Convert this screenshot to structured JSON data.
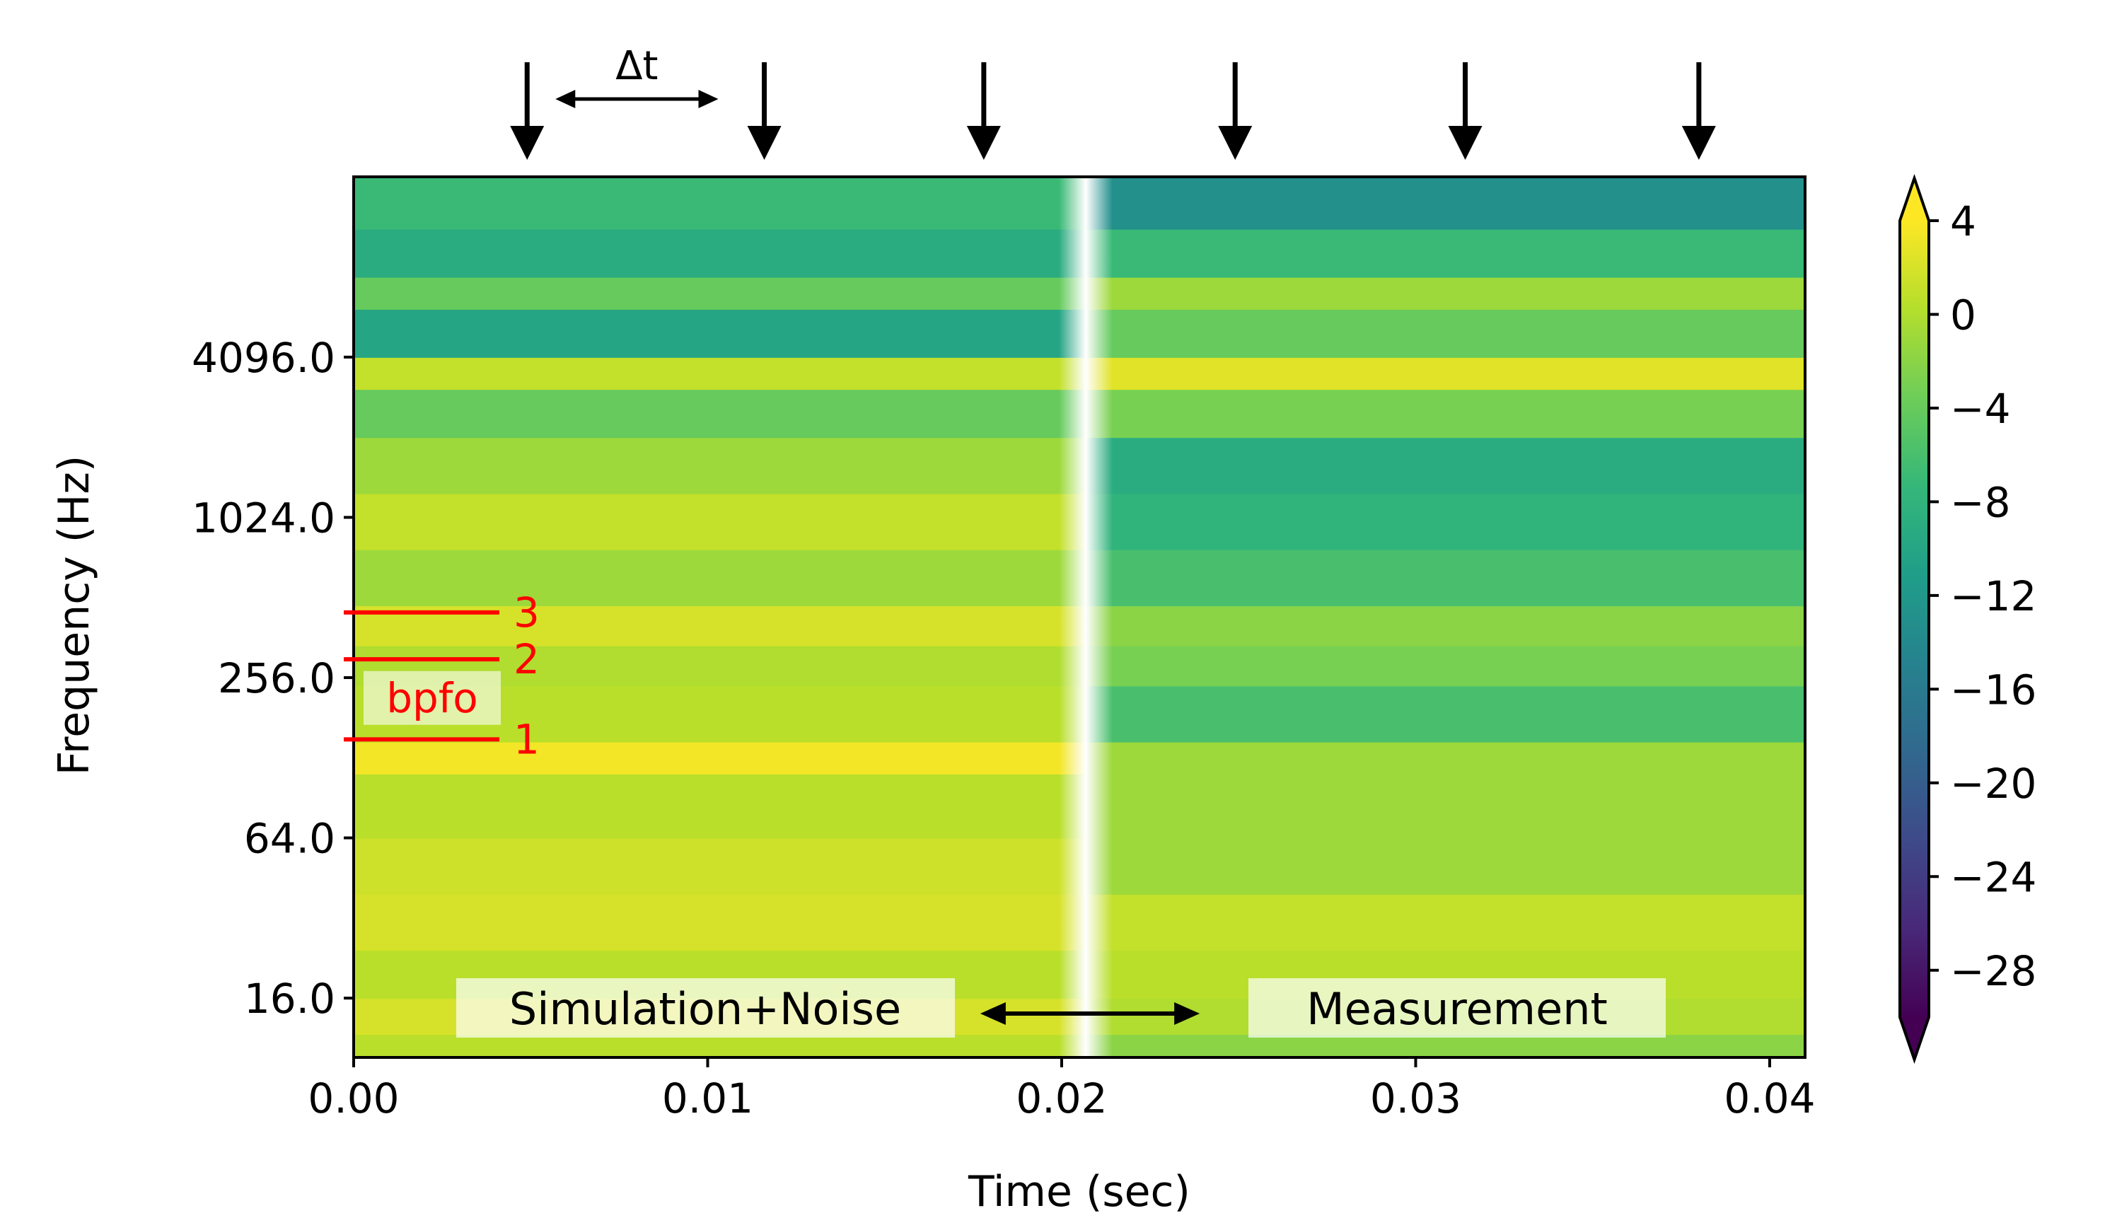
{
  "chart_data": {
    "type": "heatmap",
    "subtype": "wavelet-scalogram",
    "xlabel": "Time (sec)",
    "ylabel": "Frequency (Hz)",
    "xlim": [
      0.0,
      0.041
    ],
    "x_ticks": [
      0.0,
      0.01,
      0.02,
      0.03,
      0.04
    ],
    "x_tick_labels": [
      "0.00",
      "0.01",
      "0.02",
      "0.03",
      "0.04"
    ],
    "ylim_log2": [
      3.26,
      14.25
    ],
    "y_ticks": [
      16,
      64,
      256,
      1024,
      4096
    ],
    "y_tick_labels": [
      "16.0",
      "64.0",
      "256.0",
      "1024.0",
      "4096.0"
    ],
    "colorbar": {
      "colormap": "viridis",
      "range": [
        -30,
        4
      ],
      "extend": "both",
      "ticks": [
        4,
        0,
        -4,
        -8,
        -12,
        -16,
        -20,
        -24,
        -28
      ],
      "tick_labels": [
        "4",
        "0",
        "−4",
        "−8",
        "−12",
        "−16",
        "−20",
        "−24",
        "−28"
      ]
    },
    "gap_time": 0.0207,
    "regions": [
      {
        "name": "Simulation+Noise",
        "label": "Simulation+Noise",
        "time_range": [
          0.0,
          0.0207
        ]
      },
      {
        "name": "Measurement",
        "label": "Measurement",
        "time_range": [
          0.0207,
          0.041
        ]
      }
    ],
    "region_arrow": {
      "from_time": 0.0177,
      "to_time": 0.0239
    },
    "impulse_arrow_times": [
      0.0049,
      0.0116,
      0.0178,
      0.0249,
      0.0314,
      0.038
    ],
    "delta_t": {
      "label": "Δt",
      "from_time": 0.0057,
      "to_time": 0.0103
    },
    "bpfo": {
      "label": "bpfo",
      "color": "#ff0000",
      "harmonics": [
        {
          "label": "1",
          "freq_hz": 150
        },
        {
          "label": "2",
          "freq_hz": 300
        },
        {
          "label": "3",
          "freq_hz": 450
        }
      ]
    },
    "bands": [
      {
        "y0": 3.26,
        "y1": 3.55,
        "left": 0.5,
        "right": -2
      },
      {
        "y0": 3.55,
        "y1": 4.0,
        "left": 2.0,
        "right": 0.0
      },
      {
        "y0": 4.0,
        "y1": 4.6,
        "left": 0.5,
        "right": 0.5
      },
      {
        "y0": 4.6,
        "y1": 5.3,
        "left": 2.0,
        "right": 1.0
      },
      {
        "y0": 5.3,
        "y1": 6.0,
        "left": 1.5,
        "right": -1
      },
      {
        "y0": 6.0,
        "y1": 6.8,
        "left": 0.5,
        "right": -1
      },
      {
        "y0": 6.8,
        "y1": 7.2,
        "left": 3.5,
        "right": -1
      },
      {
        "y0": 7.2,
        "y1": 7.9,
        "left": 0.5,
        "right": -6
      },
      {
        "y0": 7.9,
        "y1": 8.4,
        "left": 0.0,
        "right": -3
      },
      {
        "y0": 8.4,
        "y1": 8.9,
        "left": 2.0,
        "right": -2
      },
      {
        "y0": 8.9,
        "y1": 9.6,
        "left": -1.0,
        "right": -6
      },
      {
        "y0": 9.6,
        "y1": 10.3,
        "left": 1.0,
        "right": -8
      },
      {
        "y0": 10.3,
        "y1": 11.0,
        "left": -1.0,
        "right": -9
      },
      {
        "y0": 11.0,
        "y1": 11.6,
        "left": -4.0,
        "right": -3
      },
      {
        "y0": 11.6,
        "y1": 12.0,
        "left": 1.0,
        "right": 2.5
      },
      {
        "y0": 12.0,
        "y1": 12.6,
        "left": -10.0,
        "right": -4
      },
      {
        "y0": 12.6,
        "y1": 13.0,
        "left": -4.0,
        "right": -1
      },
      {
        "y0": 13.0,
        "y1": 13.6,
        "left": -9.0,
        "right": -7
      },
      {
        "y0": 13.6,
        "y1": 14.25,
        "left": -7.0,
        "right": -13
      }
    ]
  }
}
